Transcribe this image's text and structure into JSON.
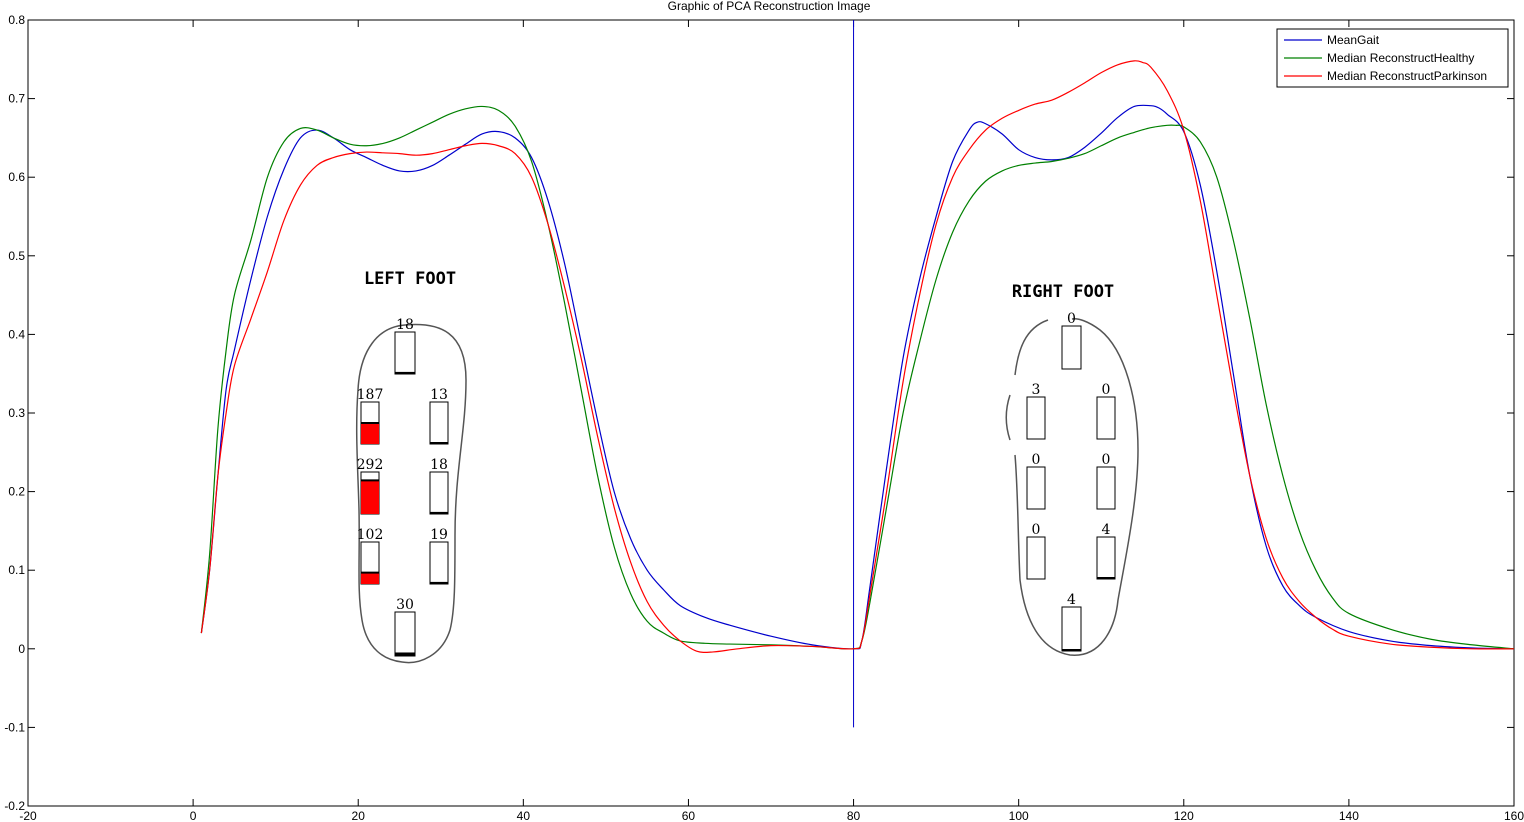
{
  "chart_data": {
    "type": "line",
    "title": "Graphic of PCA Reconstruction Image",
    "xlim": [
      -20,
      160
    ],
    "ylim": [
      -0.2,
      0.8
    ],
    "xticks": [
      -20,
      0,
      20,
      40,
      60,
      80,
      100,
      120,
      140,
      160
    ],
    "yticks": [
      -0.2,
      -0.1,
      0,
      0.1,
      0.2,
      0.3,
      0.4,
      0.5,
      0.6,
      0.7,
      0.8
    ],
    "xtick_labels": [
      "-20",
      "0",
      "20",
      "40",
      "60",
      "80",
      "100",
      "120",
      "140",
      "160"
    ],
    "ytick_labels": [
      "-0.2",
      "-0.1",
      "0",
      "0.1",
      "0.2",
      "0.3",
      "0.4",
      "0.5",
      "0.6",
      "0.7",
      "0.8"
    ],
    "legend_position": "top-right",
    "vline": {
      "x": 80,
      "y": [
        -0.1,
        0.8
      ],
      "color": "#0000cc"
    },
    "series": [
      {
        "name": "MeanGait",
        "color": "#0000cc",
        "x": [
          1,
          2,
          3,
          4,
          5,
          7,
          9,
          11,
          13,
          15,
          17,
          19,
          21,
          23,
          25,
          27,
          29,
          31,
          33,
          35,
          37,
          39,
          41,
          43,
          45,
          47,
          49,
          51,
          53,
          55,
          57,
          59,
          62,
          65,
          70,
          75,
          80,
          81,
          82,
          84,
          86,
          88,
          90,
          92,
          94,
          95,
          96,
          98,
          100,
          102,
          104,
          106,
          108,
          110,
          112,
          114,
          116,
          117,
          118,
          120,
          122,
          124,
          126,
          128,
          130,
          132,
          134,
          136,
          140,
          145,
          150,
          155,
          160
        ],
        "y": [
          0.02,
          0.1,
          0.22,
          0.33,
          0.38,
          0.47,
          0.55,
          0.61,
          0.65,
          0.66,
          0.65,
          0.635,
          0.625,
          0.615,
          0.608,
          0.608,
          0.615,
          0.628,
          0.642,
          0.655,
          0.658,
          0.65,
          0.625,
          0.57,
          0.49,
          0.39,
          0.29,
          0.2,
          0.14,
          0.1,
          0.075,
          0.055,
          0.04,
          0.03,
          0.016,
          0.005,
          0.0,
          0.01,
          0.08,
          0.23,
          0.37,
          0.47,
          0.55,
          0.62,
          0.66,
          0.67,
          0.668,
          0.655,
          0.635,
          0.625,
          0.622,
          0.625,
          0.638,
          0.656,
          0.676,
          0.69,
          0.691,
          0.688,
          0.68,
          0.658,
          0.59,
          0.48,
          0.35,
          0.22,
          0.13,
          0.08,
          0.055,
          0.04,
          0.022,
          0.01,
          0.004,
          0.001,
          0.0
        ]
      },
      {
        "name": "Median ReconstructHealthy",
        "color": "#008000",
        "x": [
          1,
          2,
          3,
          4,
          5,
          7,
          9,
          11,
          13,
          15,
          17,
          19,
          21,
          23,
          25,
          27,
          29,
          31,
          33,
          35,
          37,
          39,
          41,
          43,
          45,
          47,
          49,
          51,
          53,
          55,
          57,
          59,
          62,
          65,
          70,
          75,
          80,
          81,
          82,
          84,
          86,
          88,
          90,
          92,
          94,
          96,
          98,
          100,
          102,
          104,
          106,
          108,
          110,
          112,
          114,
          116,
          118,
          119,
          120,
          122,
          124,
          126,
          128,
          130,
          132,
          134,
          136,
          138,
          140,
          145,
          150,
          155,
          160
        ],
        "y": [
          0.02,
          0.12,
          0.28,
          0.38,
          0.45,
          0.52,
          0.6,
          0.645,
          0.662,
          0.66,
          0.65,
          0.642,
          0.64,
          0.643,
          0.65,
          0.66,
          0.67,
          0.68,
          0.687,
          0.69,
          0.685,
          0.665,
          0.62,
          0.54,
          0.44,
          0.33,
          0.22,
          0.13,
          0.07,
          0.035,
          0.02,
          0.01,
          0.007,
          0.006,
          0.005,
          0.003,
          0.0,
          0.01,
          0.06,
          0.18,
          0.3,
          0.39,
          0.47,
          0.53,
          0.57,
          0.595,
          0.608,
          0.615,
          0.618,
          0.62,
          0.624,
          0.63,
          0.64,
          0.65,
          0.657,
          0.663,
          0.666,
          0.666,
          0.664,
          0.645,
          0.6,
          0.52,
          0.42,
          0.31,
          0.22,
          0.15,
          0.1,
          0.065,
          0.045,
          0.025,
          0.012,
          0.005,
          0.0
        ]
      },
      {
        "name": "Median ReconstructParkinson",
        "color": "#ff0000",
        "x": [
          1,
          2,
          3,
          4,
          5,
          7,
          9,
          11,
          13,
          15,
          17,
          19,
          21,
          23,
          25,
          27,
          29,
          31,
          33,
          35,
          37,
          39,
          41,
          43,
          45,
          47,
          49,
          51,
          53,
          55,
          57,
          59,
          61,
          63,
          66,
          70,
          75,
          80,
          81,
          82,
          84,
          86,
          88,
          90,
          92,
          94,
          96,
          98,
          100,
          102,
          104,
          106,
          108,
          110,
          112,
          114,
          115,
          116,
          118,
          120,
          122,
          124,
          126,
          128,
          130,
          132,
          134,
          136,
          138,
          140,
          145,
          150,
          155,
          160
        ],
        "y": [
          0.02,
          0.1,
          0.22,
          0.3,
          0.36,
          0.42,
          0.48,
          0.545,
          0.59,
          0.615,
          0.625,
          0.63,
          0.632,
          0.631,
          0.63,
          0.628,
          0.63,
          0.635,
          0.64,
          0.643,
          0.64,
          0.63,
          0.6,
          0.54,
          0.46,
          0.37,
          0.27,
          0.18,
          0.11,
          0.06,
          0.03,
          0.01,
          -0.003,
          -0.004,
          0.0,
          0.004,
          0.003,
          0.0,
          0.01,
          0.07,
          0.2,
          0.34,
          0.45,
          0.54,
          0.6,
          0.635,
          0.66,
          0.675,
          0.685,
          0.693,
          0.698,
          0.708,
          0.72,
          0.733,
          0.743,
          0.748,
          0.746,
          0.74,
          0.71,
          0.66,
          0.57,
          0.45,
          0.33,
          0.22,
          0.14,
          0.09,
          0.06,
          0.04,
          0.025,
          0.016,
          0.006,
          0.002,
          0.0,
          0.0
        ]
      }
    ],
    "feet": [
      {
        "title": "LEFT FOOT",
        "sensors": [
          {
            "label": "18",
            "level": 0.05
          },
          {
            "label": "187",
            "level": 0.5
          },
          {
            "label": "13",
            "level": 0.03
          },
          {
            "label": "292",
            "level": 0.8
          },
          {
            "label": "18",
            "level": 0.05
          },
          {
            "label": "102",
            "level": 0.27
          },
          {
            "label": "19",
            "level": 0.05
          },
          {
            "label": "30",
            "level": 0.08
          }
        ]
      },
      {
        "title": "RIGHT FOOT",
        "sensors": [
          {
            "label": "0",
            "level": 0.0
          },
          {
            "label": "3",
            "level": 0.0
          },
          {
            "label": "0",
            "level": 0.0
          },
          {
            "label": "0",
            "level": 0.0
          },
          {
            "label": "0",
            "level": 0.0
          },
          {
            "label": "0",
            "level": 0.0
          },
          {
            "label": "4",
            "level": 0.03
          },
          {
            "label": "4",
            "level": 0.03
          }
        ]
      }
    ]
  }
}
